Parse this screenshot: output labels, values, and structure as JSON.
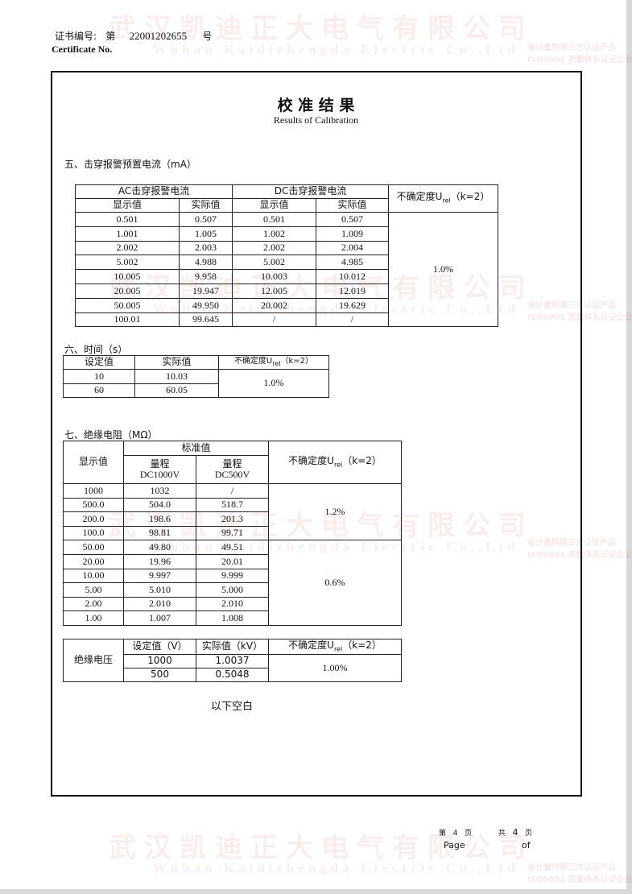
{
  "watermark": {
    "company_cn": "武汉凯迪正大电气有限公司",
    "company_en": "Wuhan Kaidizhengda Electric Co.,Ltd",
    "logo_text": "凯迪正大",
    "badge_line1": "省计量院第三方认证产品",
    "badge_line2": "ISO9001 质量体系认证企业"
  },
  "header": {
    "cert_label": "证书编号:",
    "cert_prefix": "第",
    "cert_number": "22001202655",
    "cert_suffix": "号",
    "cert_label_en": "Certificate No."
  },
  "title": {
    "cn": "校 准 结 果",
    "en": "Results of Calibration"
  },
  "section5": {
    "heading": "五、击穿报警预置电流（mA）",
    "ac_header": "AC击穿报警电流",
    "dc_header": "DC击穿报警电流",
    "col_display": "显示值",
    "col_actual": "实际值",
    "uncert_header": "不确定度U",
    "uncert_sub": "rel",
    "uncert_k": "（k=2）",
    "rows": [
      [
        "0.501",
        "0.507",
        "0.501",
        "0.507"
      ],
      [
        "1.001",
        "1.005",
        "1.002",
        "1.009"
      ],
      [
        "2.002",
        "2.003",
        "2.002",
        "2.004"
      ],
      [
        "5.002",
        "4.988",
        "5.002",
        "4.985"
      ],
      [
        "10.005",
        "9.958",
        "10.003",
        "10.012"
      ],
      [
        "20.005",
        "19.947",
        "12.005",
        "12.019"
      ],
      [
        "50.005",
        "49.950",
        "20.002",
        "19.629"
      ],
      [
        "100.01",
        "99.645",
        "/",
        "/"
      ]
    ],
    "uncertainty": "1.0%"
  },
  "section6": {
    "heading": "六、时间（s）",
    "col_set": "设定值",
    "col_actual": "实际值",
    "uncert_header": "不确定度U",
    "uncert_sub": "rel",
    "uncert_k": "（k=2）",
    "rows": [
      [
        "10",
        "10.03"
      ],
      [
        "60",
        "60.05"
      ]
    ],
    "uncertainty": "1.0%"
  },
  "section7": {
    "heading": "七、绝缘电阻（MΩ）",
    "col_display": "显示值",
    "col_standard": "标准值",
    "range_label": "量程",
    "range1": "DC1000V",
    "range2": "DC500V",
    "uncert_header": "不确定度U",
    "uncert_sub": "rel",
    "uncert_k": "（k=2）",
    "rows": [
      [
        "1000",
        "1032",
        "/"
      ],
      [
        "500.0",
        "504.0",
        "518.7"
      ],
      [
        "200.0",
        "198.6",
        "201.3"
      ],
      [
        "100.0",
        "98.81",
        "99.71"
      ],
      [
        "50.00",
        "49.80",
        "49.51"
      ],
      [
        "20.00",
        "19.96",
        "20.01"
      ],
      [
        "10.00",
        "9.997",
        "9.999"
      ],
      [
        "5.00",
        "5.010",
        "5.000"
      ],
      [
        "2.00",
        "2.010",
        "2.010"
      ],
      [
        "1.00",
        "1.007",
        "1.008"
      ]
    ],
    "uncertainty_a": "1.2%",
    "uncertainty_b": "0.6%"
  },
  "insulation_voltage": {
    "label": "绝缘电压",
    "col_set": "设定值（V）",
    "col_actual": "实际值（kV）",
    "uncert_header": "不确定度U",
    "uncert_sub": "rel",
    "uncert_k": "（k=2）",
    "rows": [
      [
        "1000",
        "1.0037"
      ],
      [
        "500",
        "0.5048"
      ]
    ],
    "uncertainty": "1.00%"
  },
  "blank_note": "以下空白",
  "footer": {
    "page_prefix": "第",
    "page_num": "4",
    "page_suffix": "页",
    "total_prefix": "共",
    "total_num": "4",
    "total_suffix": "页",
    "page_en": "Page",
    "of_en": "of"
  }
}
